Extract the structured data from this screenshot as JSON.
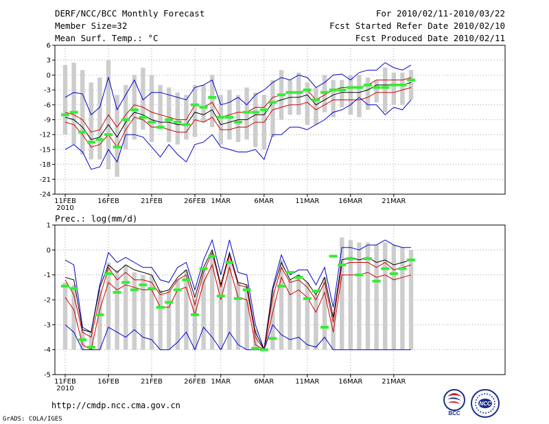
{
  "header": {
    "title": "DERF/NCC/BCC Monthly Forecast",
    "member_size": "Member Size=32",
    "variable_temp": "Mean Surf. Temp.: °C",
    "period": "For 2010/02/11-2010/03/22",
    "fcst_started": "Fcst Started Refer Date 2010/02/10",
    "fcst_produced": "Fcst Produced Date 2010/02/11"
  },
  "footer": {
    "url": "http://cmdp.ncc.cma.gov.cn",
    "credit": "GrADS: COLA/IGES",
    "logo_bcc_text": "BCC",
    "logo_ncc_text": "NCC"
  },
  "colors": {
    "box": "#cdcdcd",
    "spread": "#0000cc",
    "band": "#cc0000",
    "mean": "#000000",
    "observed": "#33ee33",
    "grid": "#888888"
  },
  "chart_data": [
    {
      "type": "line",
      "title": "Mean Surf. Temp.: °C",
      "x_start_label": "2010",
      "xtick_labels": [
        "11FEB",
        "16FEB",
        "21FEB",
        "26FEB",
        "1MAR",
        "6MAR",
        "11MAR",
        "16MAR",
        "21MAR"
      ],
      "xtick_days": [
        0,
        5,
        10,
        15,
        18,
        23,
        28,
        33,
        38
      ],
      "ylim": [
        -24,
        6
      ],
      "yticks": [
        -24,
        -21,
        -18,
        -15,
        -12,
        -9,
        -6,
        -3,
        0,
        3,
        6
      ],
      "grid": true,
      "days": 40,
      "series": [
        {
          "name": "ensemble max",
          "color": "#0000cc",
          "values": [
            -4.5,
            -3.5,
            -3.8,
            -8,
            -6.5,
            -0.5,
            -7,
            -4,
            -1,
            -5,
            -3.5,
            -3.5,
            -4,
            -4.5,
            -5,
            -2.5,
            -2,
            -1,
            -6,
            -5.5,
            -4.5,
            -6,
            -4,
            -3,
            -1.5,
            -0.5,
            -1,
            0,
            -0.5,
            -2.5,
            -1.5,
            0,
            0.2,
            -1,
            0.5,
            1,
            1,
            2.5,
            1.5,
            1,
            2
          ]
        },
        {
          "name": "upper band",
          "color": "#cc0000",
          "values": [
            -7.5,
            -8,
            -9,
            -11.5,
            -11,
            -8,
            -10.5,
            -8,
            -6,
            -6.5,
            -7.5,
            -8,
            -8.5,
            -9,
            -9,
            -6,
            -6.5,
            -5.5,
            -8.5,
            -8,
            -7.5,
            -7.5,
            -6.5,
            -6.5,
            -4.5,
            -4,
            -3.5,
            -3.5,
            -3,
            -5,
            -4,
            -3,
            -2.5,
            -2.5,
            -2.5,
            -2,
            -1,
            -1,
            -1,
            -1,
            -0.5
          ]
        },
        {
          "name": "ensemble mean",
          "color": "#000000",
          "values": [
            -8.5,
            -9,
            -10.5,
            -13,
            -12.5,
            -10,
            -12.5,
            -9.5,
            -7.5,
            -8,
            -9,
            -9.5,
            -9.5,
            -10,
            -10,
            -7.5,
            -8,
            -7,
            -10,
            -9.5,
            -9,
            -9,
            -8,
            -8,
            -5.5,
            -5,
            -4.5,
            -4.5,
            -4,
            -6,
            -5,
            -4,
            -3.5,
            -3.5,
            -3.5,
            -3,
            -2,
            -2,
            -2,
            -2,
            -1.5
          ]
        },
        {
          "name": "lower band",
          "color": "#cc0000",
          "values": [
            -9.5,
            -10,
            -12,
            -14.5,
            -14,
            -12,
            -14.5,
            -11,
            -8.5,
            -9,
            -10.5,
            -10.5,
            -11,
            -11.5,
            -11.5,
            -9,
            -9.5,
            -8.5,
            -11,
            -11,
            -10.5,
            -10.5,
            -9.5,
            -9.5,
            -7,
            -6.5,
            -6,
            -6,
            -5.5,
            -7,
            -6,
            -5,
            -5,
            -5,
            -5,
            -4.5,
            -3.5,
            -3.5,
            -3.5,
            -3,
            -2.5
          ]
        },
        {
          "name": "ensemble min",
          "color": "#0000cc",
          "values": [
            -15,
            -14,
            -15.5,
            -19,
            -18.5,
            -15,
            -17.5,
            -12,
            -12,
            -12.5,
            -14.5,
            -16.5,
            -14,
            -16,
            -17.5,
            -14,
            -13.5,
            -12,
            -14.5,
            -15,
            -15.5,
            -15.5,
            -15,
            -17,
            -12,
            -12,
            -10.5,
            -10.5,
            -11,
            -10,
            -9,
            -7.5,
            -7,
            -6,
            -4.5,
            -6,
            -6,
            -8,
            -6.5,
            -7,
            -5
          ]
        }
      ],
      "box_ranges": [
        [
          -12,
          2
        ],
        [
          -14,
          2.5
        ],
        [
          -16,
          1
        ],
        [
          -17,
          -1.5
        ],
        [
          -17,
          -0.5
        ],
        [
          -19,
          3
        ],
        [
          -20.5,
          -4
        ],
        [
          -15,
          -2
        ],
        [
          -13,
          0
        ],
        [
          -11,
          1.5
        ],
        [
          -13.5,
          0
        ],
        [
          -11,
          -2
        ],
        [
          -13.5,
          -2.5
        ],
        [
          -14,
          -3.5
        ],
        [
          -13,
          -4
        ],
        [
          -12.5,
          -2
        ],
        [
          -9.5,
          -2
        ],
        [
          -10.5,
          0
        ],
        [
          -14,
          -4
        ],
        [
          -13,
          -3
        ],
        [
          -13.5,
          -4
        ],
        [
          -13,
          -2.5
        ],
        [
          -14.5,
          -3.5
        ],
        [
          -15,
          -4
        ],
        [
          -12.5,
          -1
        ],
        [
          -9,
          1
        ],
        [
          -8,
          -1
        ],
        [
          -8,
          0.5
        ],
        [
          -10,
          -1.5
        ],
        [
          -10,
          -2.5
        ],
        [
          -7.5,
          0
        ],
        [
          -8.5,
          -1
        ],
        [
          -6.5,
          -1
        ],
        [
          -8,
          0
        ],
        [
          -8.5,
          0
        ],
        [
          -7,
          -0.5
        ],
        [
          -5.5,
          -1
        ],
        [
          -7.5,
          1.5
        ],
        [
          -6,
          0.5
        ],
        [
          -6,
          0.5
        ],
        [
          -5,
          1
        ]
      ],
      "observed": [
        -8,
        -7.5,
        -11.5,
        -13.5,
        -13,
        -12,
        -14.5,
        -9,
        -7,
        -8.5,
        -9.5,
        -10.5,
        -9,
        -9.5,
        -10,
        -6,
        -6.5,
        -4.5,
        -8.5,
        -8.5,
        -9.5,
        -7.5,
        -7.5,
        -7,
        -5.5,
        -4,
        -3.5,
        -3.5,
        -3,
        -5,
        -3.5,
        -3,
        -3,
        -2.5,
        -2.5,
        -2,
        -2.5,
        -2.5,
        -2,
        -2,
        -1
      ]
    },
    {
      "type": "line",
      "title": "Prec.: log(mm/d)",
      "x_start_label": "2010",
      "xtick_labels": [
        "11FEB",
        "16FEB",
        "21FEB",
        "26FEB",
        "1MAR",
        "6MAR",
        "11MAR",
        "16MAR",
        "21MAR"
      ],
      "xtick_days": [
        0,
        5,
        10,
        15,
        18,
        23,
        28,
        33,
        38
      ],
      "ylim": [
        -5,
        1
      ],
      "yticks": [
        -5,
        -4,
        -3,
        -2,
        -1,
        0,
        1
      ],
      "grid": true,
      "days": 40,
      "series": [
        {
          "name": "ensemble max",
          "color": "#0000cc",
          "values": [
            -0.4,
            -0.6,
            -3.1,
            -3.3,
            -1.4,
            -0.1,
            -0.5,
            -0.3,
            -0.5,
            -0.7,
            -0.7,
            -1.2,
            -1.3,
            -0.7,
            -0.5,
            -1.6,
            -0.4,
            0.4,
            -1.0,
            0.4,
            -0.9,
            -1.0,
            -3.0,
            -4.0,
            -1.5,
            -0.2,
            -1.0,
            -0.8,
            -0.8,
            -1.4,
            -0.7,
            -2.3,
            0.1,
            0.1,
            0.0,
            0.2,
            0.2,
            0.4,
            0.2,
            0.1,
            0.1
          ]
        },
        {
          "name": "upper band",
          "color": "#cc0000",
          "values": [
            -1.2,
            -1.8,
            -3.3,
            -3.5,
            -1.9,
            -0.7,
            -1.2,
            -0.9,
            -1.2,
            -1.2,
            -1.3,
            -1.8,
            -1.7,
            -1.2,
            -1.0,
            -2.2,
            -0.9,
            -0.1,
            -1.5,
            -0.2,
            -1.4,
            -1.5,
            -3.5,
            -4.0,
            -1.9,
            -0.7,
            -1.3,
            -1.2,
            -1.5,
            -2.0,
            -1.3,
            -2.9,
            -0.6,
            -0.5,
            -0.5,
            -0.5,
            -0.7,
            -0.5,
            -0.8,
            -0.7,
            -0.6
          ]
        },
        {
          "name": "ensemble mean",
          "color": "#000000",
          "values": [
            -1.1,
            -1.2,
            -3.2,
            -3.3,
            -1.5,
            -0.6,
            -0.9,
            -0.6,
            -0.8,
            -0.9,
            -1.0,
            -1.7,
            -1.6,
            -1.1,
            -0.8,
            -1.9,
            -0.7,
            0.0,
            -1.4,
            -0.1,
            -1.3,
            -1.4,
            -3.3,
            -4.0,
            -1.6,
            -0.5,
            -1.2,
            -1.0,
            -1.3,
            -1.8,
            -1.1,
            -2.7,
            -0.4,
            -0.3,
            -0.4,
            -0.3,
            -0.5,
            -0.4,
            -0.6,
            -0.5,
            -0.4
          ]
        },
        {
          "name": "lower band",
          "color": "#cc0000",
          "values": [
            -1.9,
            -2.4,
            -3.8,
            -4.0,
            -2.4,
            -1.3,
            -1.6,
            -1.4,
            -1.5,
            -1.6,
            -1.6,
            -2.3,
            -2.3,
            -1.6,
            -1.5,
            -2.6,
            -1.3,
            -0.6,
            -2.0,
            -0.7,
            -1.9,
            -2.0,
            -3.8,
            -4.0,
            -2.5,
            -1.1,
            -1.8,
            -1.6,
            -1.9,
            -2.5,
            -1.7,
            -3.3,
            -1.0,
            -1.0,
            -1.0,
            -0.9,
            -1.1,
            -1.0,
            -1.2,
            -1.1,
            -1.0
          ]
        },
        {
          "name": "ensemble min",
          "color": "#0000cc",
          "values": [
            -3.0,
            -3.3,
            -4.0,
            -4.0,
            -4.0,
            -3.1,
            -3.3,
            -3.5,
            -3.2,
            -3.5,
            -3.6,
            -4.0,
            -4.0,
            -3.7,
            -3.3,
            -4.0,
            -3.1,
            -3.5,
            -4.0,
            -3.3,
            -3.8,
            -4.0,
            -4.0,
            -4.0,
            -3.0,
            -3.4,
            -3.6,
            -3.5,
            -3.8,
            -3.9,
            -3.5,
            -4.0,
            -4.0,
            -4.0,
            -4.0,
            -4.0,
            -4.0,
            -4.0,
            -4.0,
            -4.0,
            -4.0
          ]
        }
      ],
      "box_ranges": [
        [
          -4,
          -1.3
        ],
        [
          -4,
          -1.4
        ],
        [
          -4,
          -3.2
        ],
        [
          -4,
          -3.3
        ],
        [
          -4,
          -1.6
        ],
        [
          -4,
          -0.5
        ],
        [
          -4,
          -0.8
        ],
        [
          -4,
          -0.6
        ],
        [
          -4,
          -0.9
        ],
        [
          -4,
          -1.0
        ],
        [
          -4,
          -1.0
        ],
        [
          -4,
          -1.6
        ],
        [
          -4,
          -1.6
        ],
        [
          -4,
          -1.2
        ],
        [
          -4,
          -0.8
        ],
        [
          -4,
          -2.0
        ],
        [
          -4,
          -0.8
        ],
        [
          -4,
          -0.2
        ],
        [
          -4,
          -1.3
        ],
        [
          -4,
          -0.3
        ],
        [
          -4,
          -1.3
        ],
        [
          -4,
          -1.4
        ],
        [
          -4,
          -3.2
        ],
        [
          -4,
          -4.0
        ],
        [
          -4,
          -1.6
        ],
        [
          -4,
          -0.4
        ],
        [
          -4,
          -1.2
        ],
        [
          -4,
          -1.0
        ],
        [
          -4,
          -1.3
        ],
        [
          -4,
          -1.8
        ],
        [
          -4,
          -1.1
        ],
        [
          -4,
          -2.5
        ],
        [
          -4,
          0.5
        ],
        [
          -4,
          0.4
        ],
        [
          -4,
          0.3
        ],
        [
          -4,
          0.3
        ],
        [
          -4,
          0.2
        ],
        [
          -4,
          0.3
        ],
        [
          -4,
          0.2
        ],
        [
          -4,
          0.1
        ],
        [
          -4,
          0.0
        ]
      ],
      "observed": [
        -1.45,
        -1.55,
        -3.6,
        -3.9,
        -2.6,
        -0.95,
        -1.7,
        -1.3,
        -1.6,
        -1.4,
        -1.55,
        -2.3,
        -2.1,
        -1.6,
        -1.2,
        -2.6,
        -0.75,
        -0.25,
        -1.85,
        -0.5,
        -1.95,
        -1.6,
        -3.95,
        -4.0,
        -3.55,
        -1.45,
        -0.9,
        -1.1,
        -1.95,
        -1.65,
        -3.1,
        -0.25,
        -0.6,
        -0.35,
        -1.0,
        -0.35,
        -1.25,
        -0.75,
        -0.95,
        -0.75,
        -0.4
      ]
    }
  ]
}
